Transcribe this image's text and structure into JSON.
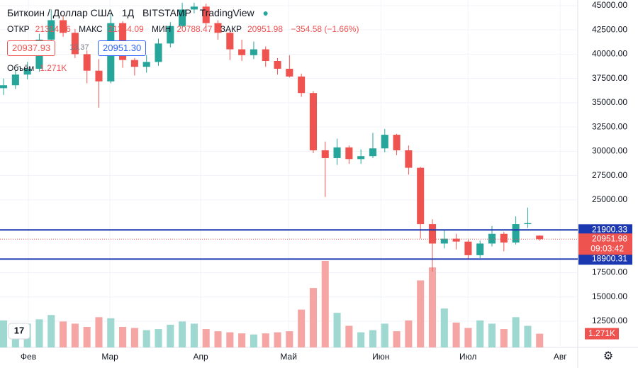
{
  "chart_data": {
    "type": "candlestick",
    "symbol": "Биткоин / Доллар США",
    "interval": "1Д",
    "exchange": "BITSTAMP",
    "source": "TradingView",
    "ohlc_labels": [
      "ОТКР",
      "МАКС",
      "МИН",
      "ЗАКР"
    ],
    "change": "−354.58 (−1.66%)",
    "sell_price": "20937.93",
    "spread": "13.37",
    "buy_price": "20951.30",
    "volume_title": "Объём",
    "timer": "09:03:42",
    "up_color": "#26a69a",
    "down_color": "#ef5350",
    "volume_up_color": "#9fd8d0",
    "volume_down_color": "#f5a6a4",
    "level_color": "#1c38b0",
    "open": [
      36500,
      36800,
      37900,
      38500,
      41500,
      43500,
      42200,
      40000,
      38300,
      37200,
      43200,
      39400,
      38700,
      39200,
      41100,
      42900,
      44600,
      44900,
      43200,
      42200,
      40500,
      39900,
      40500,
      39300,
      38500,
      37700,
      36000,
      30100,
      29300,
      30400,
      29200,
      29500,
      30300,
      31700,
      30100,
      28300,
      22500,
      20500,
      21000,
      20700,
      19300,
      20500,
      21500,
      20600,
      22500,
      21314.26
    ],
    "high": [
      37500,
      38400,
      39200,
      42100,
      44600,
      44000,
      42600,
      40400,
      39500,
      44200,
      43400,
      39600,
      39900,
      41600,
      43300,
      45300,
      45300,
      45200,
      43500,
      42500,
      41500,
      41300,
      40800,
      39600,
      39900,
      38000,
      36200,
      31000,
      31300,
      30600,
      30200,
      31900,
      32300,
      31800,
      30600,
      28400,
      23000,
      21900,
      21500,
      20900,
      20800,
      22300,
      21700,
      23300,
      24200,
      21344.09
    ],
    "low": [
      35800,
      36400,
      37400,
      38200,
      41200,
      41800,
      39600,
      37000,
      34500,
      37000,
      38600,
      37800,
      38100,
      38800,
      40700,
      42600,
      44200,
      42800,
      41500,
      39400,
      39300,
      39500,
      38700,
      37900,
      37600,
      35600,
      29800,
      25300,
      28600,
      28700,
      28700,
      29300,
      29900,
      29600,
      27600,
      21000,
      17600,
      20000,
      19900,
      18900,
      19000,
      20200,
      19700,
      20400,
      22100,
      20788.47
    ],
    "close": [
      36800,
      37900,
      38500,
      41500,
      43500,
      42200,
      40000,
      38300,
      37200,
      43200,
      39400,
      38700,
      39200,
      41100,
      42900,
      44600,
      44900,
      43200,
      42200,
      40500,
      39900,
      40500,
      39300,
      38500,
      37700,
      36000,
      30100,
      29300,
      30400,
      29200,
      29500,
      30300,
      31700,
      30100,
      28300,
      22500,
      20500,
      21000,
      20700,
      19300,
      20500,
      21500,
      20600,
      22500,
      22600,
      20951.98
    ],
    "volume": [
      2500,
      1800,
      2200,
      2600,
      3000,
      2400,
      2200,
      1900,
      2800,
      2700,
      1900,
      1800,
      1600,
      1700,
      2100,
      2400,
      2200,
      1700,
      1500,
      1400,
      1300,
      1200,
      1300,
      1400,
      1500,
      3500,
      5500,
      8000,
      3200,
      2000,
      1400,
      1600,
      2200,
      1500,
      2500,
      6200,
      7400,
      3600,
      2300,
      1800,
      2500,
      2200,
      1700,
      2800,
      2000,
      1271
    ],
    "volume_label": {
      "value": 1271,
      "label": "1.271K"
    },
    "volume_max": 8000,
    "xlim": [
      -0.3,
      48.2
    ],
    "xticks": [
      {
        "value": 2.08,
        "label": "Фев"
      },
      {
        "value": 8.93,
        "label": "Мар"
      },
      {
        "value": 16.55,
        "label": "Апр"
      },
      {
        "value": 23.93,
        "label": "Май"
      },
      {
        "value": 31.67,
        "label": "Июн"
      },
      {
        "value": 38.99,
        "label": "Июл"
      },
      {
        "value": 46.73,
        "label": "Авг"
      }
    ],
    "ylim": [
      9800,
      45580
    ],
    "yticks": [
      {
        "value": 45000,
        "label": "45000.00"
      },
      {
        "value": 42500,
        "label": "42500.00"
      },
      {
        "value": 40000,
        "label": "40000.00"
      },
      {
        "value": 37500,
        "label": "37500.00"
      },
      {
        "value": 35000,
        "label": "35000.00"
      },
      {
        "value": 32500,
        "label": "32500.00"
      },
      {
        "value": 30000,
        "label": "30000.00"
      },
      {
        "value": 27500,
        "label": "27500.00"
      },
      {
        "value": 25000,
        "label": "25000.00"
      },
      {
        "value": 17500,
        "label": "17500.00"
      },
      {
        "value": 15000,
        "label": "15000.00"
      },
      {
        "value": 12500,
        "label": "12500.00"
      }
    ],
    "levels": [
      21900.33,
      18900.31
    ],
    "grid": true
  }
}
